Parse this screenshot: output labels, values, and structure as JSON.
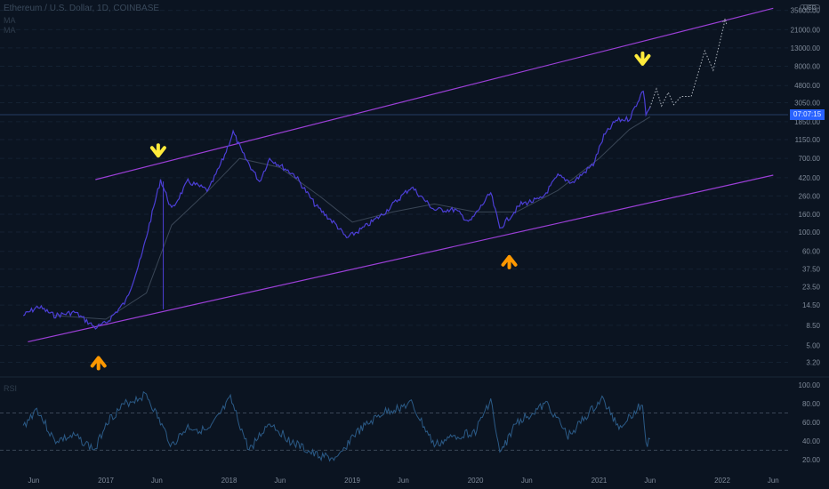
{
  "symbol_title": "Ethereum / U.S. Dollar, 1D, COINBASE",
  "indicator_labels": [
    "MA",
    "MA"
  ],
  "rsi_label": "RSI",
  "currency_tag": "USD",
  "price_tag": "07:07:15",
  "colors": {
    "background": "#0b1421",
    "price_line": "#4c3fd6",
    "ma_fast": "#3a4656",
    "ma_slow": "#2f3946",
    "channel": "#9b3fd6",
    "rsi_line": "#2b5a86",
    "arrow_top": "#ffeb3b",
    "arrow_bottom": "#ff9800",
    "projection": "#b0b7c0"
  },
  "chart_data": [
    {
      "type": "line",
      "title": "Ethereum / U.S. Dollar, 1D, COINBASE",
      "yscale": "log",
      "ylim": [
        2.5,
        40000
      ],
      "y_ticks": [
        "35000.00",
        "21000.00",
        "13000.00",
        "8000.00",
        "4800.00",
        "3050.00",
        "1850.00",
        "1150.00",
        "700.00",
        "420.00",
        "260.00",
        "160.00",
        "100.00",
        "60.00",
        "37.50",
        "23.50",
        "14.50",
        "8.50",
        "5.00",
        "3.20"
      ],
      "x_ticks": [
        "Jun",
        "2017",
        "Jun",
        "2018",
        "Jun",
        "2019",
        "Jun",
        "2020",
        "Jun",
        "2021",
        "Jun",
        "2022",
        "Jun"
      ],
      "xlim": [
        "2016-04-15",
        "2022-07-15"
      ],
      "series": [
        {
          "points": [
            [
              "2016-05-01",
              11
            ],
            [
              "2016-06-15",
              14
            ],
            [
              "2016-08-01",
              11
            ],
            [
              "2016-10-01",
              12
            ],
            [
              "2016-12-01",
              8
            ],
            [
              "2017-01-01",
              9
            ],
            [
              "2017-03-01",
              16
            ],
            [
              "2017-04-15",
              50
            ],
            [
              "2017-06-12",
              400
            ],
            [
              "2017-07-15",
              180
            ],
            [
              "2017-09-01",
              380
            ],
            [
              "2017-11-01",
              300
            ],
            [
              "2017-12-15",
              700
            ],
            [
              "2018-01-13",
              1400
            ],
            [
              "2018-02-10",
              800
            ],
            [
              "2018-04-01",
              380
            ],
            [
              "2018-05-01",
              700
            ],
            [
              "2018-07-15",
              450
            ],
            [
              "2018-09-15",
              200
            ],
            [
              "2018-11-15",
              120
            ],
            [
              "2018-12-15",
              85
            ],
            [
              "2019-02-01",
              110
            ],
            [
              "2019-04-01",
              160
            ],
            [
              "2019-06-25",
              330
            ],
            [
              "2019-09-01",
              180
            ],
            [
              "2019-11-01",
              180
            ],
            [
              "2019-12-15",
              130
            ],
            [
              "2020-02-15",
              280
            ],
            [
              "2020-03-13",
              110
            ],
            [
              "2020-05-15",
              210
            ],
            [
              "2020-07-15",
              240
            ],
            [
              "2020-09-01",
              440
            ],
            [
              "2020-10-15",
              370
            ],
            [
              "2020-12-15",
              600
            ],
            [
              "2021-01-15",
              1250
            ],
            [
              "2021-02-20",
              1900
            ],
            [
              "2021-04-01",
              2000
            ],
            [
              "2021-05-12",
              4300
            ],
            [
              "2021-05-20",
              2300
            ],
            [
              "2021-06-01",
              2700
            ]
          ]
        },
        {
          "points": [
            [
              "2016-08-01",
              11
            ],
            [
              "2017-01-01",
              10
            ],
            [
              "2017-05-01",
              20
            ],
            [
              "2017-07-15",
              120
            ],
            [
              "2017-11-01",
              300
            ],
            [
              "2018-02-01",
              700
            ],
            [
              "2018-06-01",
              550
            ],
            [
              "2018-10-01",
              250
            ],
            [
              "2019-01-01",
              130
            ],
            [
              "2019-05-01",
              170
            ],
            [
              "2019-09-01",
              210
            ],
            [
              "2020-01-01",
              170
            ],
            [
              "2020-05-01",
              170
            ],
            [
              "2020-09-01",
              300
            ],
            [
              "2021-01-01",
              700
            ],
            [
              "2021-04-01",
              1500
            ],
            [
              "2021-06-01",
              2100
            ]
          ]
        }
      ],
      "channel": {
        "upper": [
          [
            "2016-12-01",
            400
          ],
          [
            "2022-06-01",
            37000
          ]
        ],
        "lower": [
          [
            "2016-05-15",
            5.5
          ],
          [
            "2022-06-01",
            450
          ]
        ]
      },
      "projection": [
        [
          "2021-06-01",
          2700
        ],
        [
          "2021-06-20",
          4400
        ],
        [
          "2021-07-05",
          2800
        ],
        [
          "2021-07-25",
          4000
        ],
        [
          "2021-08-10",
          2900
        ],
        [
          "2021-09-01",
          3600
        ],
        [
          "2021-10-01",
          3600
        ],
        [
          "2021-11-10",
          12000
        ],
        [
          "2021-12-05",
          7200
        ],
        [
          "2022-01-10",
          28000
        ]
      ],
      "arrows": [
        {
          "direction": "down",
          "date": "2017-06-05",
          "value": 750
        },
        {
          "direction": "down",
          "date": "2021-05-10",
          "value": 8500
        },
        {
          "direction": "up",
          "date": "2016-12-10",
          "value": 3.6
        },
        {
          "direction": "up",
          "date": "2020-04-10",
          "value": 52
        }
      ]
    },
    {
      "type": "line",
      "title": "RSI",
      "ylim": [
        15,
        105
      ],
      "y_ticks": [
        "100.00",
        "80.00",
        "60.00",
        "40.00",
        "20.00"
      ],
      "reference_lines": [
        70,
        30
      ],
      "points": [
        [
          "2016-05-01",
          55
        ],
        [
          "2016-06-10",
          75
        ],
        [
          "2016-08-01",
          40
        ],
        [
          "2016-10-01",
          45
        ],
        [
          "2016-12-01",
          30
        ],
        [
          "2017-01-01",
          60
        ],
        [
          "2017-03-01",
          80
        ],
        [
          "2017-05-01",
          90
        ],
        [
          "2017-07-15",
          35
        ],
        [
          "2017-09-01",
          55
        ],
        [
          "2017-11-01",
          50
        ],
        [
          "2018-01-05",
          85
        ],
        [
          "2018-03-01",
          30
        ],
        [
          "2018-05-01",
          60
        ],
        [
          "2018-07-01",
          40
        ],
        [
          "2018-09-10",
          25
        ],
        [
          "2018-11-20",
          20
        ],
        [
          "2019-01-01",
          45
        ],
        [
          "2019-04-01",
          70
        ],
        [
          "2019-06-25",
          80
        ],
        [
          "2019-09-01",
          35
        ],
        [
          "2019-11-01",
          45
        ],
        [
          "2020-01-01",
          50
        ],
        [
          "2020-02-15",
          85
        ],
        [
          "2020-03-13",
          25
        ],
        [
          "2020-05-01",
          60
        ],
        [
          "2020-08-01",
          80
        ],
        [
          "2020-10-01",
          45
        ],
        [
          "2021-01-10",
          85
        ],
        [
          "2021-03-01",
          55
        ],
        [
          "2021-05-10",
          80
        ],
        [
          "2021-05-20",
          35
        ],
        [
          "2021-06-01",
          42
        ]
      ]
    }
  ]
}
